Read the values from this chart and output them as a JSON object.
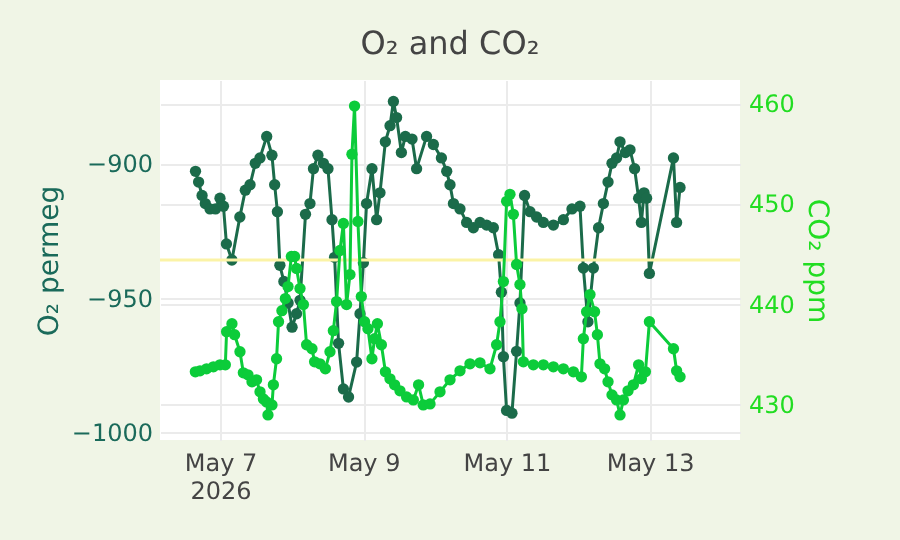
{
  "chart_data": {
    "type": "line",
    "title": "O₂ and CO₂",
    "ylabel": "O₂ permeg",
    "y2label": "CO₂ ppm",
    "xlim": [
      "2026-05-06T03:54",
      "2026-05-14T06:18"
    ],
    "xticks": [
      {
        "value": "2026-05-07T00:00",
        "label": "May 7\n2026"
      },
      {
        "value": "2026-05-09T00:00",
        "label": "May 9"
      },
      {
        "value": "2026-05-11T00:00",
        "label": "May 11"
      },
      {
        "value": "2026-05-13T00:00",
        "label": "May 13"
      }
    ],
    "ylim": [
      -1003,
      -869
    ],
    "yticks": [
      {
        "value": -1000,
        "label": "−1000"
      },
      {
        "value": -950,
        "label": "−950"
      },
      {
        "value": -900,
        "label": "−900"
      }
    ],
    "y2lim": [
      426.4,
      462.3
    ],
    "y2ticks": [
      430,
      440,
      450,
      460
    ],
    "grid": true,
    "marker": "circle",
    "line_style": "solid",
    "ref_lines": [
      {
        "axis": "y",
        "value": -936,
        "color": "#fbf3a6"
      }
    ],
    "series": [
      {
        "color": "#1b6b4a",
        "x": [
          "2026-05-06T15:48",
          "2026-05-06T16:50",
          "2026-05-06T18:00",
          "2026-05-06T19:05",
          "2026-05-06T20:40",
          "2026-05-06T22:30",
          "2026-05-07T00:00",
          "2026-05-07T01:10",
          "2026-05-07T02:10",
          "2026-05-07T04:00",
          "2026-05-07T06:40",
          "2026-05-07T08:30",
          "2026-05-07T10:05",
          "2026-05-07T11:50",
          "2026-05-07T13:25",
          "2026-05-07T15:40",
          "2026-05-07T17:25",
          "2026-05-07T18:20",
          "2026-05-07T19:15",
          "2026-05-07T20:05",
          "2026-05-07T21:25",
          "2026-05-07T22:50",
          "2026-05-08T00:10",
          "2026-05-08T01:40",
          "2026-05-08T02:50",
          "2026-05-08T04:40",
          "2026-05-08T06:10",
          "2026-05-08T07:20",
          "2026-05-08T08:50",
          "2026-05-08T10:40",
          "2026-05-08T12:12",
          "2026-05-08T13:33",
          "2026-05-08T14:25",
          "2026-05-08T15:45",
          "2026-05-08T17:22",
          "2026-05-08T19:06",
          "2026-05-08T21:48",
          "2026-05-08T22:56",
          "2026-05-09T00:04",
          "2026-05-09T01:08",
          "2026-05-09T02:57",
          "2026-05-09T04:30",
          "2026-05-09T05:38",
          "2026-05-09T07:26",
          "2026-05-09T09:00",
          "2026-05-09T10:08",
          "2026-05-09T11:12",
          "2026-05-09T12:48",
          "2026-05-09T14:08",
          "2026-05-09T16:22",
          "2026-05-09T17:54",
          "2026-05-09T21:15",
          "2026-05-09T23:32",
          "2026-05-10T02:13",
          "2026-05-10T04:00",
          "2026-05-10T05:06",
          "2026-05-10T06:15",
          "2026-05-10T08:27",
          "2026-05-10T10:40",
          "2026-05-10T12:56",
          "2026-05-10T15:09",
          "2026-05-10T17:22",
          "2026-05-10T19:38",
          "2026-05-10T21:23",
          "2026-05-10T22:19",
          "2026-05-10T23:00",
          "2026-05-11T00:04",
          "2026-05-11T01:52",
          "2026-05-11T03:25",
          "2026-05-11T04:33",
          "2026-05-11T06:06",
          "2026-05-11T07:55",
          "2026-05-11T10:08",
          "2026-05-11T12:24",
          "2026-05-11T15:45",
          "2026-05-11T19:06",
          "2026-05-11T21:59",
          "2026-05-12T00:40",
          "2026-05-12T01:48",
          "2026-05-12T03:20",
          "2026-05-12T05:09",
          "2026-05-12T06:54",
          "2026-05-12T08:31",
          "2026-05-12T10:04",
          "2026-05-12T11:24",
          "2026-05-12T12:56",
          "2026-05-12T14:05",
          "2026-05-12T15:54",
          "2026-05-12T17:26",
          "2026-05-12T18:58",
          "2026-05-12T20:19",
          "2026-05-12T21:15",
          "2026-05-12T22:08",
          "2026-05-12T23:00",
          "2026-05-12T23:56",
          "2026-05-13T08:00",
          "2026-05-13T09:03",
          "2026-05-13T10:12"
        ],
        "values": [
          -903,
          -907,
          -912,
          -915,
          -917,
          -917,
          -913,
          -916,
          -930,
          -936,
          -920,
          -910,
          -908,
          -900,
          -898,
          -890,
          -897,
          -908,
          -918,
          -938,
          -944,
          -952,
          -961,
          -956,
          -951,
          -919,
          -915,
          -902,
          -897,
          -900,
          -902,
          -921,
          -935,
          -967,
          -984,
          -987,
          -974,
          -956,
          -937,
          -915,
          -902,
          -921,
          -911,
          -892,
          -886,
          -877,
          -883,
          -896,
          -890,
          -891,
          -902,
          -890,
          -893,
          -898,
          -903,
          -908,
          -915,
          -917,
          -922,
          -924,
          -922,
          -923,
          -924,
          -934,
          -948,
          -972,
          -992,
          -993,
          -970,
          -952,
          -912,
          -918,
          -920,
          -922,
          -923,
          -921,
          -917,
          -916,
          -939,
          -959,
          -939,
          -924,
          -915,
          -907,
          -900,
          -898,
          -892,
          -896,
          -895,
          -902,
          -913,
          -922,
          -911,
          -913,
          -941,
          -898,
          -922,
          -909
        ]
      },
      {
        "axis": "y2",
        "color": "#0ccc3a",
        "x": [
          "2026-05-06T15:45",
          "2026-05-06T17:18",
          "2026-05-06T19:30",
          "2026-05-06T21:48",
          "2026-05-07T00:00",
          "2026-05-07T01:48",
          "2026-05-07T02:13",
          "2026-05-07T04:01",
          "2026-05-07T04:54",
          "2026-05-07T06:42",
          "2026-05-07T07:50",
          "2026-05-07T09:23",
          "2026-05-07T10:44",
          "2026-05-07T12:16",
          "2026-05-07T13:25",
          "2026-05-07T14:33",
          "2026-05-07T15:37",
          "2026-05-07T16:05",
          "2026-05-07T17:26",
          "2026-05-07T17:54",
          "2026-05-07T18:58",
          "2026-05-07T19:38",
          "2026-05-07T20:46",
          "2026-05-07T21:55",
          "2026-05-07T22:48",
          "2026-05-07T23:56",
          "2026-05-08T01:00",
          "2026-05-08T01:40",
          "2026-05-08T02:49",
          "2026-05-08T03:58",
          "2026-05-08T05:02",
          "2026-05-08T06:50",
          "2026-05-08T07:43",
          "2026-05-08T09:31",
          "2026-05-08T11:20",
          "2026-05-08T12:52",
          "2026-05-08T14:00",
          "2026-05-08T15:05",
          "2026-05-08T16:13",
          "2026-05-08T17:22",
          "2026-05-08T18:26",
          "2026-05-08T19:34",
          "2026-05-08T20:14",
          "2026-05-08T21:06",
          "2026-05-08T22:14",
          "2026-05-08T23:23",
          "2026-05-09T00:28",
          "2026-05-09T01:36",
          "2026-05-09T02:56",
          "2026-05-09T03:49",
          "2026-05-09T04:46",
          "2026-05-09T06:06",
          "2026-05-09T07:27",
          "2026-05-09T08:59",
          "2026-05-09T10:32",
          "2026-05-09T12:20",
          "2026-05-09T14:33",
          "2026-05-09T16:49",
          "2026-05-09T18:34",
          "2026-05-09T20:08",
          "2026-05-09T22:24",
          "2026-05-10T01:45",
          "2026-05-10T05:06",
          "2026-05-10T08:27",
          "2026-05-10T11:48",
          "2026-05-10T15:09",
          "2026-05-10T18:30",
          "2026-05-10T20:43",
          "2026-05-10T21:51",
          "2026-05-10T23:00",
          "2026-05-11T00:04",
          "2026-05-11T01:12",
          "2026-05-11T02:20",
          "2026-05-11T03:25",
          "2026-05-11T04:33",
          "2026-05-11T05:13",
          "2026-05-11T05:41",
          "2026-05-11T09:02",
          "2026-05-11T12:24",
          "2026-05-11T15:45",
          "2026-05-11T19:06",
          "2026-05-11T22:27",
          "2026-05-12T01:08",
          "2026-05-12T01:48",
          "2026-05-12T02:53",
          "2026-05-12T04:01",
          "2026-05-12T05:33",
          "2026-05-12T06:30",
          "2026-05-12T07:22",
          "2026-05-12T08:55",
          "2026-05-12T10:04",
          "2026-05-12T11:24",
          "2026-05-12T12:56",
          "2026-05-12T14:05",
          "2026-05-12T15:13",
          "2026-05-12T16:46",
          "2026-05-12T18:34",
          "2026-05-12T20:19",
          "2026-05-12T21:15",
          "2026-05-12T22:36",
          "2026-05-12T23:56",
          "2026-05-13T08:00",
          "2026-05-13T09:03",
          "2026-05-13T10:12"
        ],
        "values": [
          433.2,
          433.3,
          433.5,
          433.7,
          433.9,
          433.9,
          437.2,
          438,
          436.9,
          435.2,
          433.1,
          432.9,
          432.2,
          432.4,
          431.2,
          430.5,
          430.2,
          428.9,
          429.9,
          431.9,
          434.5,
          438.2,
          439.3,
          440.5,
          441.7,
          444.7,
          444.7,
          443.5,
          441.5,
          439.9,
          435.9,
          435.5,
          434.2,
          434,
          433.5,
          435.2,
          437.3,
          440.2,
          445.3,
          448,
          439.9,
          442.9,
          454.9,
          459.7,
          448.2,
          440.7,
          438.2,
          437.5,
          434.5,
          436.5,
          438,
          435.9,
          433.2,
          432.5,
          431.9,
          431.3,
          430.7,
          430.4,
          431.9,
          429.9,
          430,
          431.2,
          432.4,
          433.3,
          434,
          434.1,
          433.5,
          435.9,
          438.2,
          442.2,
          450.2,
          450.9,
          448.9,
          443.9,
          441.9,
          439.5,
          434.2,
          433.9,
          433.9,
          433.7,
          433.5,
          433.2,
          432.7,
          436.5,
          439.2,
          440.9,
          439.2,
          436.9,
          434,
          433.5,
          432.2,
          430.9,
          430.4,
          428.9,
          430.4,
          431.3,
          431.9,
          433.9,
          432.5,
          433.2,
          438.2,
          435.5,
          433.3,
          432.7
        ]
      }
    ]
  }
}
